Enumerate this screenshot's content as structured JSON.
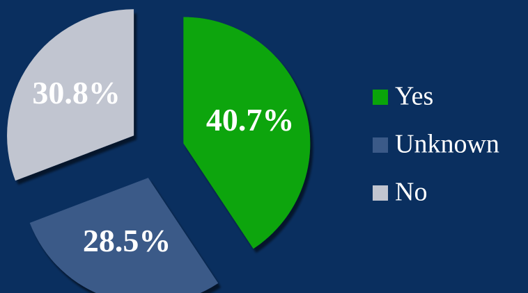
{
  "chart_data": {
    "type": "pie",
    "categories": [
      "Yes",
      "Unknown",
      "No"
    ],
    "values": [
      40.7,
      28.5,
      30.8
    ],
    "value_labels": [
      "40.7%",
      "28.5%",
      "30.8%"
    ],
    "colors": [
      "#0aa50a",
      "#3b5a88",
      "#c1c5d0"
    ],
    "legend": "right"
  }
}
